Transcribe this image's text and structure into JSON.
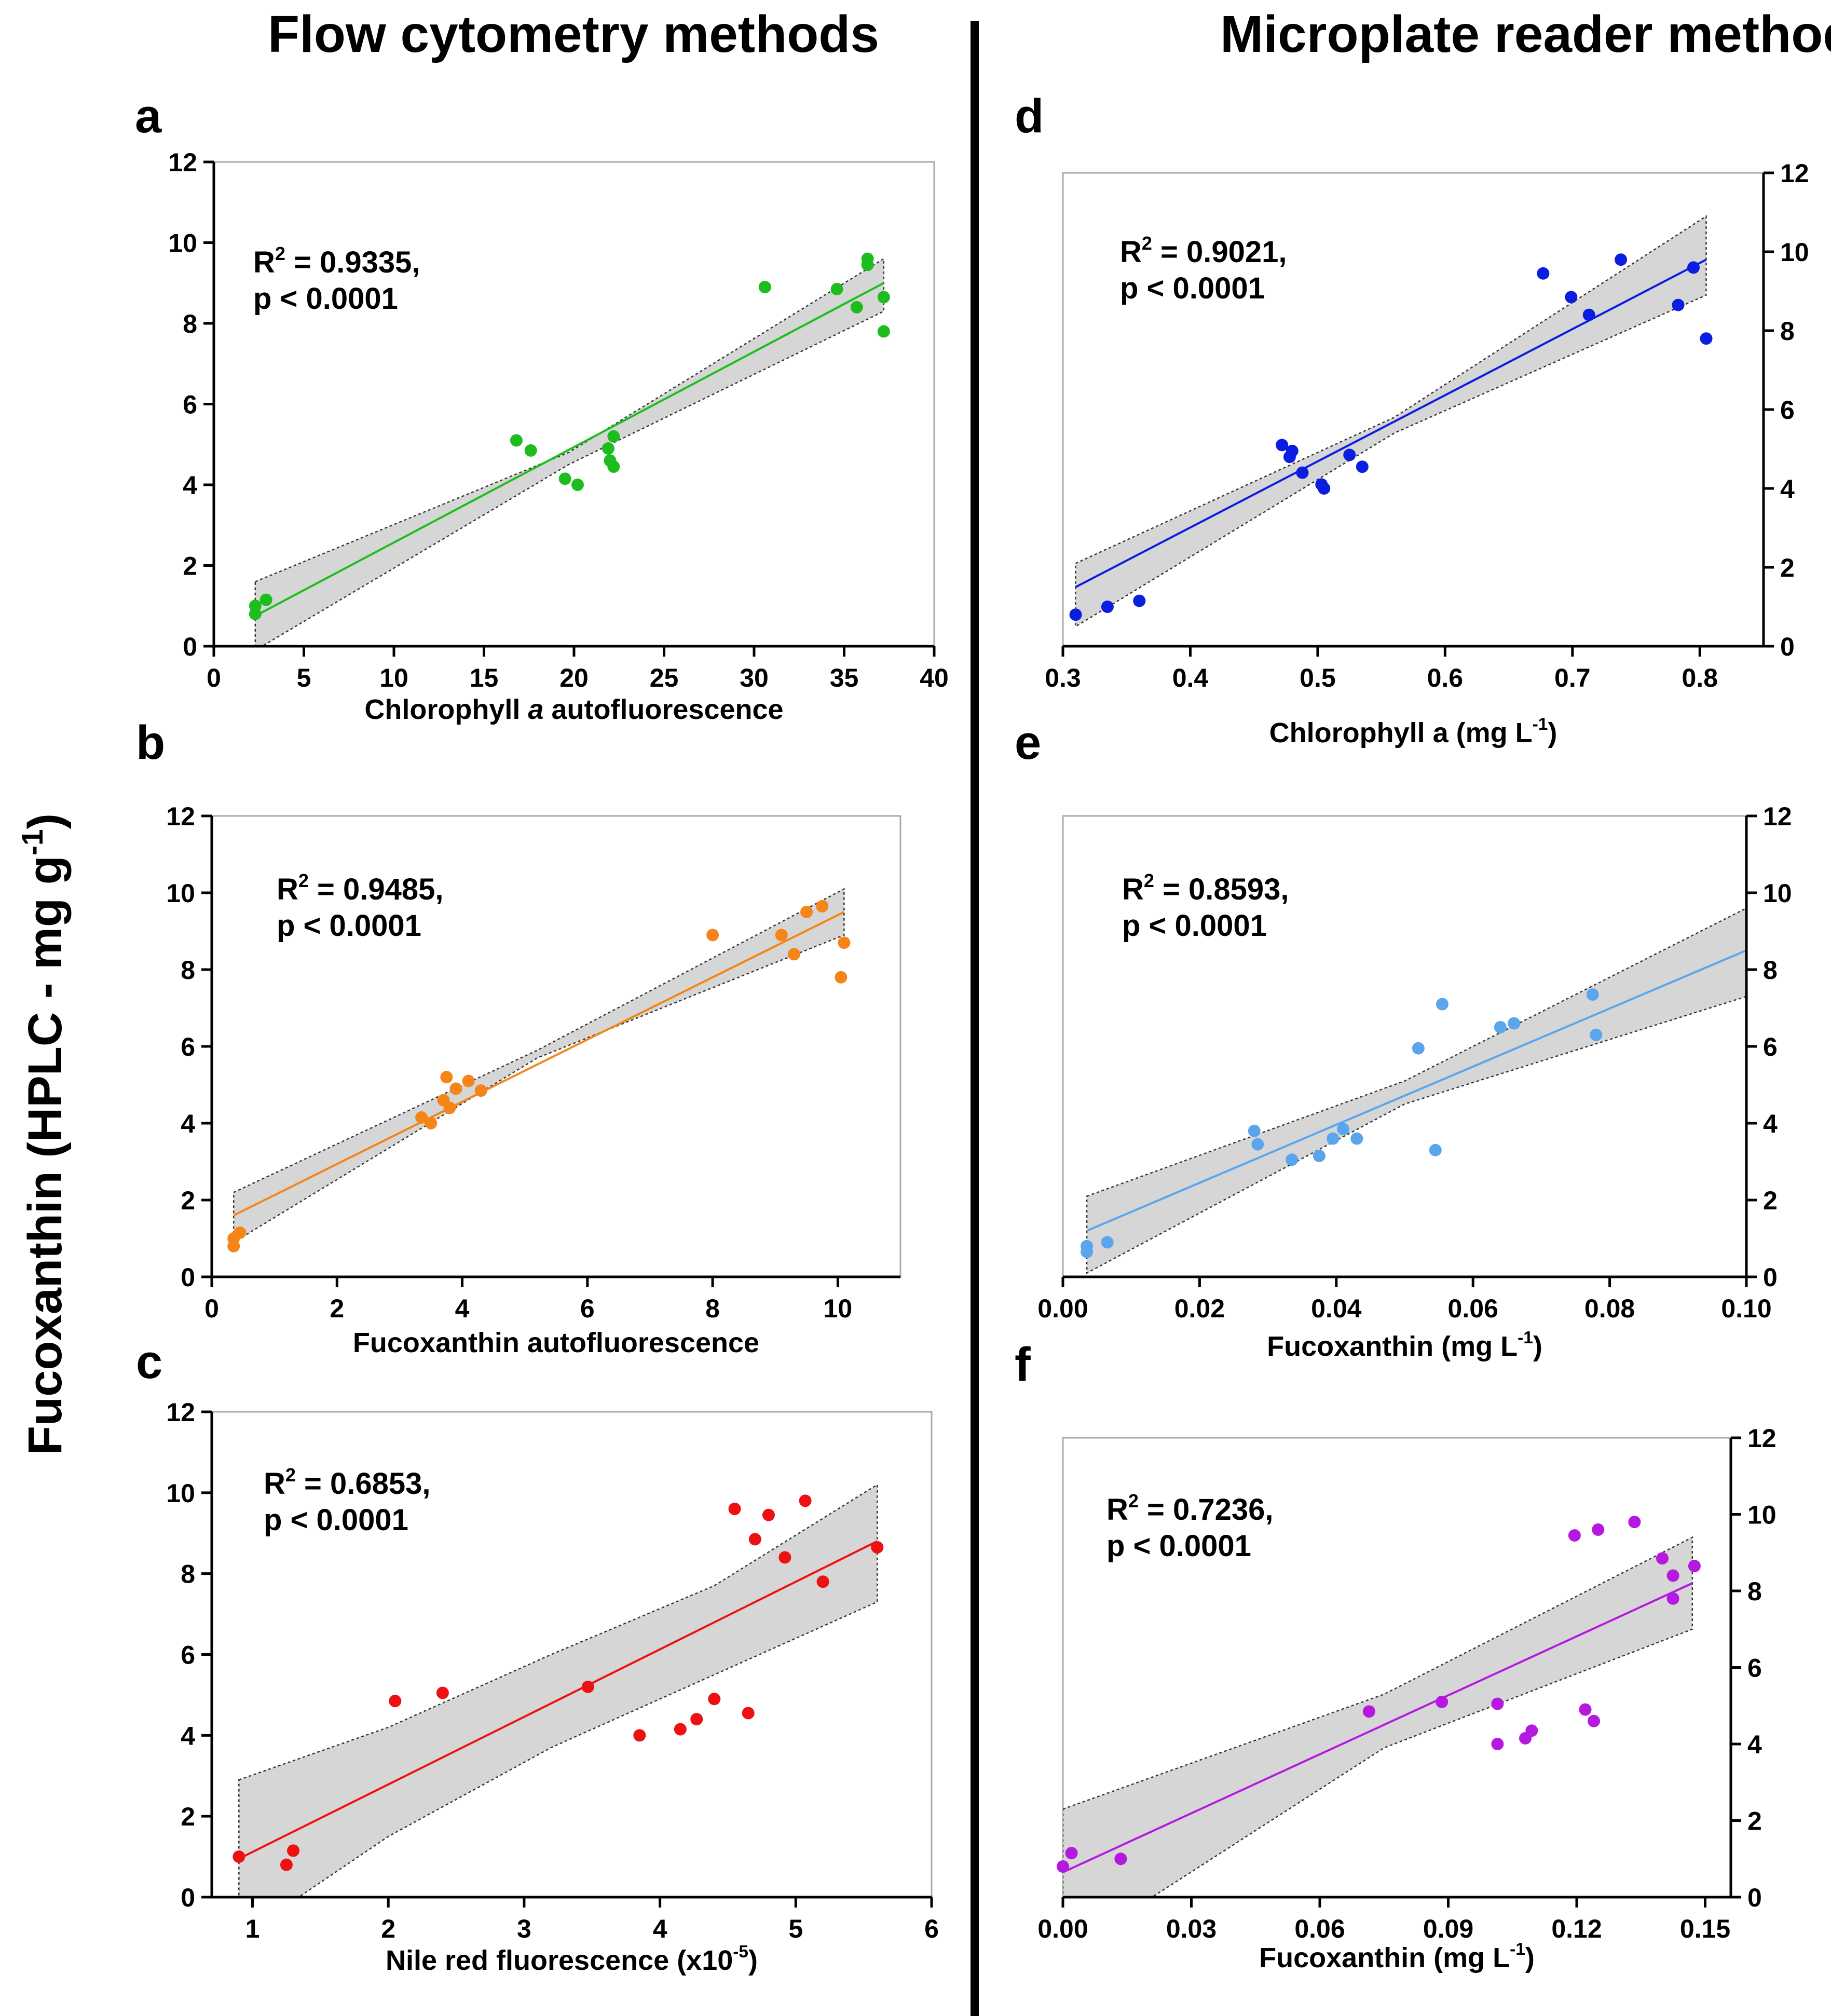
{
  "titles": {
    "left": "Flow cytometry methods",
    "right": "Microplate reader methods"
  },
  "shared_ylabel": {
    "main": "Fucoxanthin (HPLC - mg g",
    "sup": "-1",
    "end": ")"
  },
  "chart_data": [
    {
      "id": "a",
      "letter": "a",
      "type": "scatter",
      "color": "#1dbd1d",
      "stat_line1": "R",
      "stat_sup": "2",
      "stat_rest": " = 0.9335,",
      "stat_line2": "p < 0.0001",
      "xlabel_parts": [
        {
          "text": "Chlorophyll "
        },
        {
          "text": "a",
          "italic": true
        },
        {
          "text": " autofluorescence"
        }
      ],
      "ylabel": "Fucoxanthin (HPLC - mg g-1)",
      "xlim": [
        0,
        40
      ],
      "ylim": [
        0,
        12
      ],
      "xticks": [
        0,
        5,
        10,
        15,
        20,
        25,
        30,
        35,
        40
      ],
      "xtick_labels": [
        "0",
        "5",
        "10",
        "15",
        "20",
        "25",
        "30",
        "35",
        "40"
      ],
      "yticks": [
        0,
        2,
        4,
        6,
        8,
        10,
        12
      ],
      "ytick_labels": [
        "0",
        "2",
        "4",
        "6",
        "8",
        "10",
        "12"
      ],
      "fit": {
        "x0": 2.3,
        "y0": 0.75,
        "x1": 37.2,
        "y1": 9.0
      },
      "band_upper": [
        [
          2.3,
          1.6
        ],
        [
          19.7,
          4.8
        ],
        [
          37.2,
          9.6
        ]
      ],
      "band_lower": [
        [
          2.3,
          -0.1
        ],
        [
          19.7,
          4.5
        ],
        [
          37.2,
          8.3
        ]
      ],
      "points": [
        [
          2.3,
          1.0
        ],
        [
          2.3,
          0.8
        ],
        [
          2.9,
          1.15
        ],
        [
          16.8,
          5.1
        ],
        [
          17.6,
          4.85
        ],
        [
          19.5,
          4.15
        ],
        [
          20.2,
          4.0
        ],
        [
          21.9,
          4.9
        ],
        [
          22.0,
          4.6
        ],
        [
          22.2,
          4.45
        ],
        [
          22.2,
          5.2
        ],
        [
          30.6,
          8.9
        ],
        [
          34.6,
          8.85
        ],
        [
          35.7,
          8.4
        ],
        [
          36.3,
          9.6
        ],
        [
          36.3,
          9.45
        ],
        [
          37.2,
          8.65
        ],
        [
          37.2,
          7.8
        ]
      ]
    },
    {
      "id": "b",
      "letter": "b",
      "type": "scatter",
      "color": "#f58518",
      "stat_line1": "R",
      "stat_sup": "2",
      "stat_rest": " = 0.9485,",
      "stat_line2": "p < 0.0001",
      "xlabel_parts": [
        {
          "text": "Fucoxanthin autofluorescence"
        }
      ],
      "ylabel": "Fucoxanthin (HPLC - mg g-1)",
      "xlim": [
        0,
        11
      ],
      "ylim": [
        0,
        12
      ],
      "xticks": [
        0,
        2,
        4,
        6,
        8,
        10
      ],
      "xtick_labels": [
        "0",
        "2",
        "4",
        "6",
        "8",
        "10"
      ],
      "yticks": [
        0,
        2,
        4,
        6,
        8,
        10,
        12
      ],
      "ytick_labels": [
        "0",
        "2",
        "4",
        "6",
        "8",
        "10",
        "12"
      ],
      "fit": {
        "x0": 0.35,
        "y0": 1.6,
        "x1": 10.1,
        "y1": 9.5
      },
      "band_upper": [
        [
          0.35,
          2.2
        ],
        [
          5.2,
          5.9
        ],
        [
          10.1,
          10.1
        ]
      ],
      "band_lower": [
        [
          0.35,
          0.9
        ],
        [
          5.2,
          5.7
        ],
        [
          10.1,
          8.9
        ]
      ],
      "points": [
        [
          0.35,
          1.0
        ],
        [
          0.35,
          0.8
        ],
        [
          0.45,
          1.15
        ],
        [
          3.35,
          4.15
        ],
        [
          3.5,
          4.0
        ],
        [
          3.7,
          4.6
        ],
        [
          3.75,
          5.2
        ],
        [
          3.8,
          4.4
        ],
        [
          3.9,
          4.9
        ],
        [
          4.1,
          5.1
        ],
        [
          4.3,
          4.85
        ],
        [
          8.0,
          8.9
        ],
        [
          9.1,
          8.9
        ],
        [
          9.3,
          8.4
        ],
        [
          9.5,
          9.5
        ],
        [
          9.75,
          9.65
        ],
        [
          10.1,
          8.7
        ],
        [
          10.05,
          7.8
        ]
      ]
    },
    {
      "id": "c",
      "letter": "c",
      "type": "scatter",
      "color": "#ee1111",
      "stat_line1": "R",
      "stat_sup": "2",
      "stat_rest": " = 0.6853,",
      "stat_line2": "p < 0.0001",
      "xlabel_parts": [
        {
          "text": "Nile red fluorescence (x10"
        },
        {
          "text": "-5",
          "sup": true
        },
        {
          "text": ")"
        }
      ],
      "ylabel": "Fucoxanthin (HPLC - mg g-1)",
      "xlim": [
        0.7,
        6
      ],
      "ylim": [
        0,
        12
      ],
      "xticks": [
        1,
        2,
        3,
        4,
        5,
        6
      ],
      "xtick_labels": [
        "1",
        "2",
        "3",
        "4",
        "5",
        "6"
      ],
      "yticks": [
        0,
        2,
        4,
        6,
        8,
        10,
        12
      ],
      "ytick_labels": [
        "0",
        "2",
        "4",
        "6",
        "8",
        "10",
        "12"
      ],
      "fit": {
        "x0": 0.9,
        "y0": 0.95,
        "x1": 5.6,
        "y1": 8.8
      },
      "band_upper": [
        [
          0.9,
          2.9
        ],
        [
          2.0,
          4.2
        ],
        [
          3.2,
          6.0
        ],
        [
          4.4,
          7.7
        ],
        [
          5.6,
          10.2
        ]
      ],
      "band_lower": [
        [
          0.9,
          -1.0
        ],
        [
          2.0,
          1.5
        ],
        [
          3.2,
          3.7
        ],
        [
          4.4,
          5.5
        ],
        [
          5.6,
          7.3
        ]
      ],
      "points": [
        [
          0.9,
          1.0
        ],
        [
          1.25,
          0.8
        ],
        [
          1.3,
          1.15
        ],
        [
          2.05,
          4.85
        ],
        [
          2.4,
          5.05
        ],
        [
          3.47,
          5.2
        ],
        [
          3.85,
          4.0
        ],
        [
          4.15,
          4.15
        ],
        [
          4.27,
          4.4
        ],
        [
          4.4,
          4.9
        ],
        [
          4.55,
          9.6
        ],
        [
          4.65,
          4.55
        ],
        [
          4.7,
          8.85
        ],
        [
          4.8,
          9.45
        ],
        [
          4.92,
          8.4
        ],
        [
          5.07,
          9.8
        ],
        [
          5.2,
          7.8
        ],
        [
          5.6,
          8.65
        ]
      ]
    },
    {
      "id": "d",
      "letter": "d",
      "type": "scatter",
      "color": "#0a1de0",
      "stat_line1": "R",
      "stat_sup": "2",
      "stat_rest": " = 0.9021,",
      "stat_line2": "p < 0.0001",
      "xlabel_parts": [
        {
          "text": "Chlorophyll a (mg L"
        },
        {
          "text": "-1",
          "sup": true
        },
        {
          "text": ")"
        }
      ],
      "ylabel": "Fucoxanthin (HPLC - mg g-1)",
      "xlim": [
        0.3,
        0.85
      ],
      "ylim": [
        0,
        12
      ],
      "xticks": [
        0.3,
        0.4,
        0.5,
        0.6,
        0.7,
        0.8
      ],
      "xtick_labels": [
        "0.3",
        "0.4",
        "0.5",
        "0.6",
        "0.7",
        "0.8"
      ],
      "yticks": [
        0,
        2,
        4,
        6,
        8,
        10,
        12
      ],
      "ytick_labels": [
        "0",
        "2",
        "4",
        "6",
        "8",
        "10",
        "12"
      ],
      "fit": {
        "x0": 0.31,
        "y0": 1.5,
        "x1": 0.805,
        "y1": 9.8
      },
      "band_upper": [
        [
          0.31,
          2.1
        ],
        [
          0.56,
          5.8
        ],
        [
          0.805,
          10.9
        ]
      ],
      "band_lower": [
        [
          0.31,
          0.5
        ],
        [
          0.56,
          5.4
        ],
        [
          0.805,
          8.9
        ]
      ],
      "points": [
        [
          0.31,
          0.8
        ],
        [
          0.335,
          1.0
        ],
        [
          0.36,
          1.15
        ],
        [
          0.472,
          5.1
        ],
        [
          0.478,
          4.8
        ],
        [
          0.48,
          4.95
        ],
        [
          0.488,
          4.4
        ],
        [
          0.503,
          4.1
        ],
        [
          0.505,
          4.0
        ],
        [
          0.525,
          4.85
        ],
        [
          0.535,
          4.55
        ],
        [
          0.677,
          9.45
        ],
        [
          0.699,
          8.85
        ],
        [
          0.713,
          8.4
        ],
        [
          0.738,
          9.8
        ],
        [
          0.783,
          8.65
        ],
        [
          0.795,
          9.6
        ],
        [
          0.805,
          7.8
        ]
      ]
    },
    {
      "id": "e",
      "letter": "e",
      "type": "scatter",
      "color": "#5aa5ec",
      "stat_line1": "R",
      "stat_sup": "2",
      "stat_rest": " = 0.8593,",
      "stat_line2": "p < 0.0001",
      "xlabel_parts": [
        {
          "text": "Fucoxanthin (mg L"
        },
        {
          "text": "-1",
          "sup": true
        },
        {
          "text": ")"
        }
      ],
      "ylabel": "Fucoxanthin (HPLC - mg g-1)",
      "xlim": [
        0,
        0.1
      ],
      "ylim": [
        0,
        12
      ],
      "xticks": [
        0,
        0.02,
        0.04,
        0.06,
        0.08,
        0.1
      ],
      "xtick_labels": [
        "0.00",
        "0.02",
        "0.04",
        "0.06",
        "0.08",
        "0.10"
      ],
      "yticks": [
        0,
        2,
        4,
        6,
        8,
        10,
        12
      ],
      "ytick_labels": [
        "0",
        "2",
        "4",
        "6",
        "8",
        "10",
        "12"
      ],
      "fit": {
        "x0": 0.0035,
        "y0": 1.2,
        "x1": 0.1,
        "y1": 8.5
      },
      "band_upper": [
        [
          0.0035,
          2.1
        ],
        [
          0.05,
          5.1
        ],
        [
          0.1,
          9.6
        ]
      ],
      "band_lower": [
        [
          0.0035,
          0.1
        ],
        [
          0.05,
          4.5
        ],
        [
          0.1,
          7.3
        ]
      ],
      "points": [
        [
          0.0035,
          0.65
        ],
        [
          0.0035,
          0.8
        ],
        [
          0.0065,
          0.9
        ],
        [
          0.028,
          3.8
        ],
        [
          0.0285,
          3.45
        ],
        [
          0.0335,
          3.05
        ],
        [
          0.0375,
          3.15
        ],
        [
          0.0395,
          3.6
        ],
        [
          0.041,
          3.85
        ],
        [
          0.043,
          3.6
        ],
        [
          0.052,
          5.95
        ],
        [
          0.0545,
          3.3
        ],
        [
          0.0555,
          7.1
        ],
        [
          0.064,
          6.5
        ],
        [
          0.066,
          6.6
        ],
        [
          0.0775,
          7.35
        ],
        [
          0.078,
          6.3
        ]
      ]
    },
    {
      "id": "f",
      "letter": "f",
      "type": "scatter",
      "color": "#b519e0",
      "stat_line1": "R",
      "stat_sup": "2",
      "stat_rest": " = 0.7236,",
      "stat_line2": "p < 0.0001",
      "xlabel_parts": [
        {
          "text": "Fucoxanthin (mg L"
        },
        {
          "text": "-1",
          "sup": true
        },
        {
          "text": ")"
        }
      ],
      "ylabel": "Fucoxanthin (HPLC - mg g-1)",
      "xlim": [
        0,
        0.156
      ],
      "ylim": [
        0,
        12
      ],
      "xticks": [
        0,
        0.03,
        0.06,
        0.09,
        0.12,
        0.15
      ],
      "xtick_labels": [
        "0.00",
        "0.03",
        "0.06",
        "0.09",
        "0.12",
        "0.15"
      ],
      "yticks": [
        0,
        2,
        4,
        6,
        8,
        10,
        12
      ],
      "ytick_labels": [
        "0",
        "2",
        "4",
        "6",
        "8",
        "10",
        "12"
      ],
      "fit": {
        "x0": 0.0,
        "y0": 0.65,
        "x1": 0.147,
        "y1": 8.2
      },
      "band_upper": [
        [
          0.0,
          2.3
        ],
        [
          0.075,
          5.3
        ],
        [
          0.147,
          9.4
        ]
      ],
      "band_lower": [
        [
          0.0,
          -1.5
        ],
        [
          0.075,
          3.9
        ],
        [
          0.147,
          7.0
        ]
      ],
      "points": [
        [
          0.0,
          0.8
        ],
        [
          0.002,
          1.15
        ],
        [
          0.0135,
          1.0
        ],
        [
          0.0715,
          4.85
        ],
        [
          0.0885,
          5.1
        ],
        [
          0.1015,
          5.05
        ],
        [
          0.1015,
          4.0
        ],
        [
          0.108,
          4.15
        ],
        [
          0.1095,
          4.35
        ],
        [
          0.1195,
          9.45
        ],
        [
          0.122,
          4.9
        ],
        [
          0.124,
          4.6
        ],
        [
          0.125,
          9.6
        ],
        [
          0.1335,
          9.8
        ],
        [
          0.14,
          8.85
        ],
        [
          0.1425,
          8.4
        ],
        [
          0.1425,
          7.8
        ],
        [
          0.1475,
          8.65
        ]
      ]
    }
  ]
}
